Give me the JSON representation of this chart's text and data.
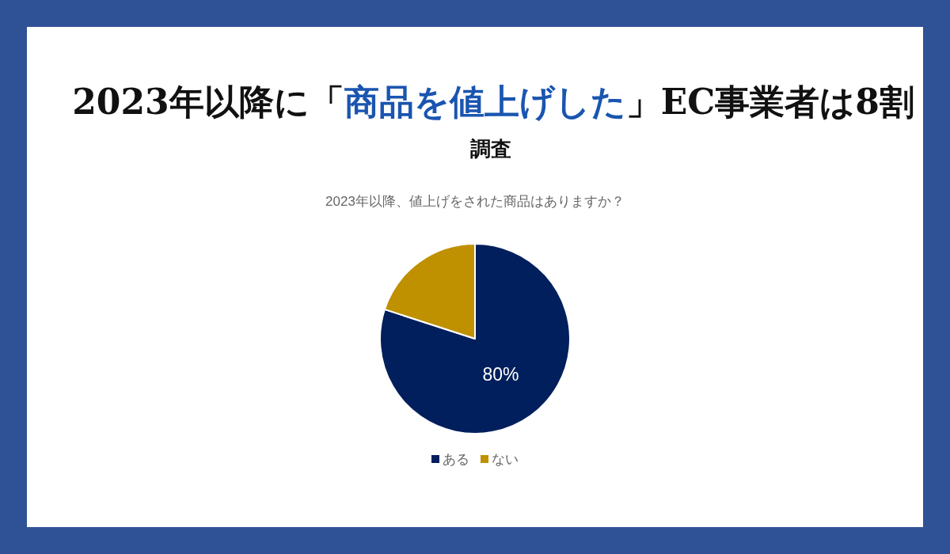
{
  "chart_data": {
    "type": "pie",
    "title": "2023年以降に「商品を値上げした」EC事業者は8割",
    "subtitle": "2023年以降、値上げをされた商品はありますか？",
    "annotations": [
      "調査"
    ],
    "categories": [
      "ある",
      "ない"
    ],
    "values": [
      80,
      20
    ],
    "colors": [
      "#001f5c",
      "#bf9000"
    ],
    "value_labels": [
      "80%",
      null
    ],
    "legend": "bottom"
  }
}
